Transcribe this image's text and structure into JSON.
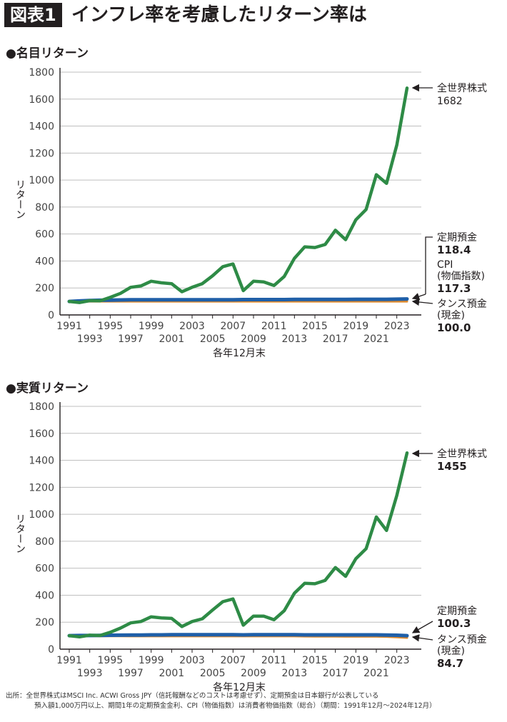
{
  "header": {
    "badge": "図表1",
    "title": "インフレ率を考慮したリターン率は"
  },
  "colors": {
    "world_stock": "#2e8b46",
    "time_deposit": "#1f5fa8",
    "cpi": "#e08a2c",
    "tansu": "#e08a2c",
    "grid": "#bfbfbf",
    "axis": "#231f20"
  },
  "chart_data": [
    {
      "type": "line",
      "title": "●名目リターン",
      "ylabel": "リターン",
      "xlabel": "各年12月末",
      "ylim": [
        0,
        1800
      ],
      "yticks": [
        0,
        200,
        400,
        600,
        800,
        1000,
        1200,
        1400,
        1600,
        1800
      ],
      "x": [
        1991,
        1992,
        1993,
        1994,
        1995,
        1996,
        1997,
        1998,
        1999,
        2000,
        2001,
        2002,
        2003,
        2004,
        2005,
        2006,
        2007,
        2008,
        2009,
        2010,
        2011,
        2012,
        2013,
        2014,
        2015,
        2016,
        2017,
        2018,
        2019,
        2020,
        2021,
        2022,
        2023,
        2024
      ],
      "xticks_upper": [
        "1991",
        "1995",
        "1999",
        "2003",
        "2007",
        "2011",
        "2015",
        "2019",
        "2023"
      ],
      "xticks_lower": [
        "1993",
        "1997",
        "2001",
        "2005",
        "2009",
        "2013",
        "2017",
        "2021"
      ],
      "grid": true,
      "series": [
        {
          "key": "world_stock",
          "name": "全世界株式",
          "end_value_label": "1682",
          "values": [
            100,
            92,
            106,
            105,
            130,
            160,
            205,
            215,
            250,
            238,
            232,
            172,
            205,
            232,
            290,
            358,
            378,
            180,
            250,
            245,
            218,
            285,
            420,
            505,
            500,
            522,
            628,
            558,
            705,
            782,
            1040,
            975,
            1260,
            1682
          ]
        },
        {
          "key": "time_deposit",
          "name": "定期預金",
          "end_value_label": "118.4",
          "values": [
            100,
            104,
            107,
            109,
            110,
            111,
            112,
            112,
            113,
            113,
            113,
            113,
            113,
            113,
            113,
            113,
            113,
            114,
            114,
            114,
            114,
            114,
            115,
            115,
            115,
            115,
            115,
            115,
            116,
            116,
            116,
            116,
            117,
            118.4
          ]
        },
        {
          "key": "cpi",
          "name": "CPI\n(物価指数)",
          "end_value_label": "117.3",
          "values": [
            100,
            101,
            102,
            103,
            103,
            103,
            104,
            104,
            104,
            104,
            104,
            104,
            104,
            104,
            104,
            104,
            104,
            104,
            104,
            104,
            104,
            104,
            104,
            105,
            106,
            106,
            106,
            107,
            107,
            107,
            107,
            109,
            112,
            117.3
          ]
        },
        {
          "key": "tansu",
          "name": "タンス預金\n(現金)",
          "end_value_label": "100.0",
          "values": [
            100,
            100,
            100,
            100,
            100,
            100,
            100,
            100,
            100,
            100,
            100,
            100,
            100,
            100,
            100,
            100,
            100,
            100,
            100,
            100,
            100,
            100,
            100,
            100,
            100,
            100,
            100,
            100,
            100,
            100,
            100,
            100,
            100,
            100.0
          ]
        }
      ]
    },
    {
      "type": "line",
      "title": "●実質リターン",
      "ylabel": "リターン",
      "xlabel": "各年12月末",
      "ylim": [
        0,
        1800
      ],
      "yticks": [
        0,
        200,
        400,
        600,
        800,
        1000,
        1200,
        1400,
        1600,
        1800
      ],
      "x": [
        1991,
        1992,
        1993,
        1994,
        1995,
        1996,
        1997,
        1998,
        1999,
        2000,
        2001,
        2002,
        2003,
        2004,
        2005,
        2006,
        2007,
        2008,
        2009,
        2010,
        2011,
        2012,
        2013,
        2014,
        2015,
        2016,
        2017,
        2018,
        2019,
        2020,
        2021,
        2022,
        2023,
        2024
      ],
      "xticks_upper": [
        "1991",
        "1995",
        "1999",
        "2003",
        "2007",
        "2011",
        "2015",
        "2019",
        "2023"
      ],
      "xticks_lower": [
        "1993",
        "1997",
        "2001",
        "2005",
        "2009",
        "2013",
        "2017",
        "2021"
      ],
      "grid": true,
      "series": [
        {
          "key": "world_stock",
          "name": "全世界株式",
          "end_value_label": "1455",
          "values": [
            100,
            91,
            104,
            101,
            125,
            156,
            195,
            205,
            240,
            232,
            228,
            168,
            205,
            225,
            290,
            352,
            372,
            178,
            245,
            245,
            218,
            285,
            415,
            488,
            485,
            510,
            605,
            540,
            670,
            745,
            980,
            880,
            1140,
            1455
          ]
        },
        {
          "key": "time_deposit",
          "name": "定期預金",
          "end_value_label": "100.3",
          "values": [
            100,
            101,
            101,
            102,
            103,
            104,
            105,
            105,
            106,
            106,
            107,
            107,
            107,
            107,
            107,
            107,
            107,
            106,
            107,
            107,
            107,
            107,
            107,
            106,
            106,
            106,
            106,
            106,
            106,
            106,
            106,
            105,
            103,
            100.3
          ]
        },
        {
          "key": "tansu",
          "name": "タンス預金\n(現金)",
          "end_value_label": "84.7",
          "values": [
            100,
            99,
            98,
            97,
            97,
            97,
            96,
            96,
            96,
            96,
            96,
            96,
            96,
            96,
            96,
            96,
            96,
            96,
            96,
            96,
            96,
            96,
            96,
            95,
            94,
            94,
            94,
            93,
            93,
            93,
            93,
            92,
            89,
            84.7
          ]
        }
      ]
    }
  ],
  "footnote": {
    "line1": "出所：全世界株式はMSCI Inc. ACWI Gross JPY（信託報酬などのコストは考慮せず）、定期預金は日本銀行が公表している",
    "line2": "預入額1,000万円以上、期間1年の定期預金金利、CPI（物価指数）は消費者物価指数（総合）（期間：1991年12月～2024年12月）"
  }
}
